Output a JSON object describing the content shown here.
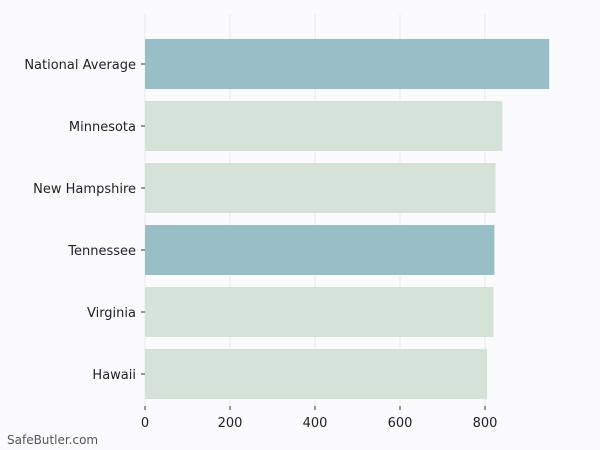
{
  "chart_data": {
    "type": "bar",
    "orientation": "horizontal",
    "categories": [
      "National Average",
      "Minnesota",
      "New Hampshire",
      "Tennessee",
      "Virginia",
      "Hawaii"
    ],
    "values": [
      951,
      841,
      825,
      822,
      820,
      805
    ],
    "highlight": [
      true,
      false,
      false,
      true,
      false,
      false
    ],
    "xlim": [
      0,
      1000
    ],
    "xticks": [
      0,
      200,
      400,
      600,
      800
    ],
    "grid": "vertical",
    "title": "",
    "xlabel": "",
    "ylabel": ""
  },
  "colors": {
    "highlight_bar": "#98bec6",
    "normal_bar": "#d5e2d8",
    "grid": "#e8e8ec",
    "background": "#fbfbfe"
  },
  "watermark": "SafeButler.com"
}
